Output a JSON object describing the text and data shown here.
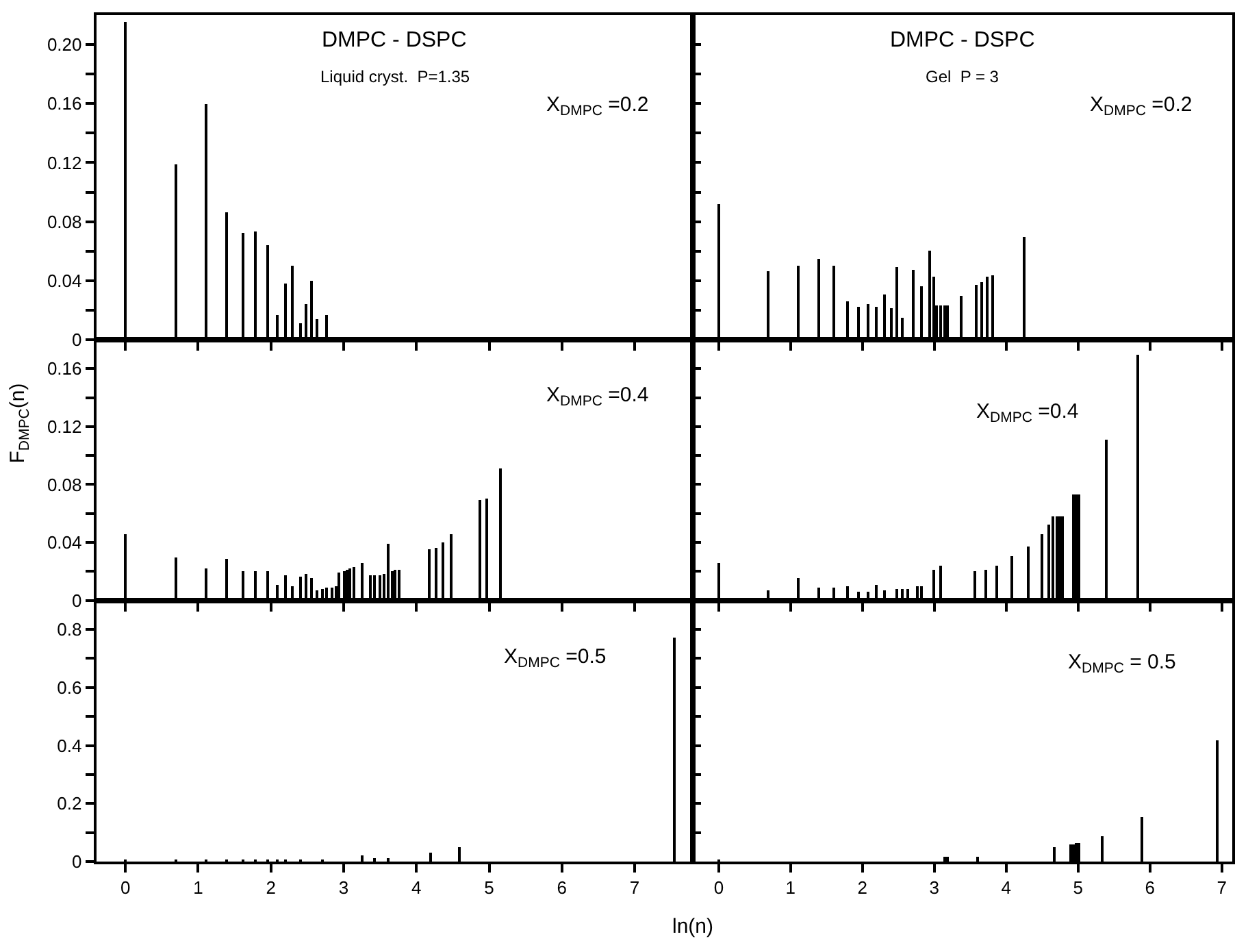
{
  "chart_data": [
    {
      "type": "bar",
      "title": "DMPC - DSPC",
      "subtitle": "Liquid cryst.  P=1.35",
      "annotations": [
        "X$_{DMPC}$ =0.2"
      ],
      "color": "#000000",
      "tick_labels": "y",
      "x": [
        0,
        0.69,
        1.1,
        1.39,
        1.61,
        1.79,
        1.95,
        2.08,
        2.2,
        2.3,
        2.4,
        2.48,
        2.56,
        2.64,
        2.77
      ],
      "values": [
        0.215,
        0.119,
        0.16,
        0.086,
        0.072,
        0.073,
        0.064,
        0.017,
        0.038,
        0.05,
        0.011,
        0.024,
        0.04,
        0.014,
        0.017
      ],
      "xlim": [
        -0.4,
        7.8
      ],
      "xticks": [
        0,
        1,
        2,
        3,
        4,
        5,
        6,
        7
      ],
      "ylim": [
        0,
        0.22
      ],
      "yticks": [
        0,
        {
          "value": 0.02,
          "label": null
        },
        0.04,
        {
          "value": 0.06,
          "label": null
        },
        0.08,
        {
          "value": 0.1,
          "label": null
        },
        0.12,
        {
          "value": 0.14,
          "label": null
        },
        0.16,
        {
          "value": 0.18,
          "label": null
        },
        {
          "value": 0.2,
          "label": "0.20"
        }
      ]
    },
    {
      "type": "bar",
      "title": "DMPC - DSPC",
      "subtitle": "Gel  P = 3",
      "annotations": [
        "X$_{DMPC}$ =0.2"
      ],
      "color": "#000000",
      "tick_labels": false,
      "x": [
        0,
        0.69,
        1.1,
        1.39,
        1.61,
        1.79,
        1.95,
        2.08,
        2.2,
        2.3,
        2.4,
        2.48,
        2.56,
        2.71,
        2.83,
        2.94,
        3.0,
        3.04,
        3.09,
        3.14,
        3.18,
        3.37,
        3.58,
        3.66,
        3.74,
        3.81,
        4.25
      ],
      "values": [
        0.092,
        0.046,
        0.05,
        0.055,
        0.05,
        0.026,
        0.022,
        0.024,
        0.022,
        0.031,
        0.021,
        0.049,
        0.015,
        0.047,
        0.036,
        0.06,
        0.043,
        0.023,
        0.023,
        0.023,
        0.023,
        0.03,
        0.037,
        0.039,
        0.043,
        0.044,
        0.07
      ],
      "xlim": [
        -0.36,
        7.15
      ],
      "xticks": [
        0,
        1,
        2,
        3,
        4,
        5,
        6,
        7
      ],
      "ylim": [
        0,
        0.22
      ],
      "yticks": [
        0,
        {
          "value": 0.02,
          "label": null
        },
        0.04,
        {
          "value": 0.06,
          "label": null
        },
        0.08,
        {
          "value": 0.1,
          "label": null
        },
        0.12,
        {
          "value": 0.14,
          "label": null
        },
        0.16,
        {
          "value": 0.18,
          "label": null
        },
        0.2
      ]
    },
    {
      "type": "bar",
      "ylabel": "F$_{DMPC}$(n)",
      "annotations": [
        "X$_{DMPC}$ =0.4"
      ],
      "color": "#000000",
      "tick_labels": "y",
      "x": [
        0,
        0.69,
        1.1,
        1.39,
        1.61,
        1.79,
        1.95,
        2.08,
        2.2,
        2.3,
        2.4,
        2.48,
        2.56,
        2.64,
        2.71,
        2.77,
        2.83,
        2.89,
        2.94,
        3.0,
        3.04,
        3.09,
        3.14,
        3.26,
        3.37,
        3.43,
        3.5,
        3.56,
        3.61,
        3.66,
        3.71,
        3.76,
        4.17,
        4.27,
        4.37,
        4.48,
        4.87,
        4.96,
        5.16
      ],
      "values": [
        0.046,
        0.03,
        0.022,
        0.029,
        0.02,
        0.02,
        0.02,
        0.011,
        0.017,
        0.01,
        0.016,
        0.018,
        0.015,
        0.007,
        0.008,
        0.009,
        0.009,
        0.01,
        0.019,
        0.02,
        0.021,
        0.022,
        0.023,
        0.026,
        0.017,
        0.017,
        0.017,
        0.018,
        0.039,
        0.02,
        0.021,
        0.021,
        0.035,
        0.036,
        0.04,
        0.046,
        0.069,
        0.07,
        0.091
      ],
      "xlim": [
        -0.4,
        7.8
      ],
      "xticks": [
        0,
        1,
        2,
        3,
        4,
        5,
        6,
        7
      ],
      "ylim": [
        0,
        0.18
      ],
      "yticks": [
        0,
        {
          "value": 0.02,
          "label": null
        },
        0.04,
        {
          "value": 0.06,
          "label": null
        },
        0.08,
        {
          "value": 0.1,
          "label": null
        },
        0.12,
        {
          "value": 0.14,
          "label": null
        },
        0.16
      ]
    },
    {
      "type": "bar",
      "annotations": [
        "X$_{DMPC}$ =0.4"
      ],
      "color": "#000000",
      "tick_labels": false,
      "x": [
        0,
        0.69,
        1.1,
        1.39,
        1.61,
        1.79,
        1.95,
        2.08,
        2.2,
        2.3,
        2.48,
        2.56,
        2.64,
        2.77,
        2.83,
        3.0,
        3.09,
        3.56,
        3.71,
        3.87,
        4.09,
        4.3,
        4.5,
        4.6,
        4.65,
        4.7,
        4.74,
        4.79,
        4.94,
        4.98,
        5.02,
        5.39,
        5.83
      ],
      "values": [
        0.026,
        0.007,
        0.015,
        0.009,
        0.009,
        0.01,
        0.006,
        0.006,
        0.011,
        0.007,
        0.008,
        0.008,
        0.008,
        0.01,
        0.01,
        0.021,
        0.024,
        0.02,
        0.021,
        0.024,
        0.031,
        0.037,
        0.046,
        0.052,
        0.058,
        0.058,
        0.058,
        0.058,
        0.073,
        0.073,
        0.073,
        0.111,
        0.17
      ],
      "xlim": [
        -0.36,
        7.15
      ],
      "xticks": [
        0,
        1,
        2,
        3,
        4,
        5,
        6,
        7
      ],
      "ylim": [
        0,
        0.18
      ],
      "yticks": [
        0,
        {
          "value": 0.02,
          "label": null
        },
        0.04,
        {
          "value": 0.06,
          "label": null
        },
        0.08,
        {
          "value": 0.1,
          "label": null
        },
        0.12,
        {
          "value": 0.14,
          "label": null
        },
        0.16
      ]
    },
    {
      "type": "bar",
      "xlabel": "ln(n)",
      "annotations": [
        "X$_{DMPC}$ =0.5"
      ],
      "color": "#000000",
      "x": [
        0,
        0.69,
        1.1,
        1.39,
        1.61,
        1.79,
        1.95,
        2.08,
        2.2,
        2.4,
        2.71,
        3.26,
        3.43,
        3.61,
        4.2,
        4.58,
        7.55
      ],
      "values": [
        0.008,
        0.006,
        0.006,
        0.006,
        0.007,
        0.008,
        0.008,
        0.006,
        0.005,
        0.004,
        0.004,
        0.024,
        0.015,
        0.015,
        0.031,
        0.049,
        0.772
      ],
      "xlim": [
        -0.4,
        7.8
      ],
      "xticks": [
        0,
        1,
        2,
        3,
        4,
        5,
        6,
        7
      ],
      "ylim": [
        0,
        0.9
      ],
      "yticks": [
        0,
        {
          "value": 0.1,
          "label": null
        },
        0.2,
        {
          "value": 0.3,
          "label": null
        },
        0.4,
        {
          "value": 0.5,
          "label": null
        },
        0.6,
        {
          "value": 0.7,
          "label": null
        },
        0.8
      ]
    },
    {
      "type": "bar",
      "annotations": [
        "X$_{DMPC}$ = 0.5"
      ],
      "color": "#000000",
      "tick_labels": "x",
      "x": [
        0,
        3.14,
        3.18,
        3.61,
        4.68,
        4.9,
        4.94,
        4.98,
        5.02,
        5.33,
        5.9,
        6.93
      ],
      "values": [
        0.005,
        0.016,
        0.016,
        0.019,
        0.05,
        0.062,
        0.062,
        0.063,
        0.066,
        0.089,
        0.155,
        0.418
      ],
      "xlim": [
        -0.36,
        7.15
      ],
      "xticks": [
        0,
        1,
        2,
        3,
        4,
        5,
        6,
        7
      ],
      "ylim": [
        0,
        0.9
      ],
      "yticks": [
        0,
        {
          "value": 0.1,
          "label": null
        },
        0.2,
        {
          "value": 0.3,
          "label": null
        },
        0.4,
        {
          "value": 0.5,
          "label": null
        },
        0.6,
        {
          "value": 0.7,
          "label": null
        },
        0.8
      ]
    }
  ]
}
